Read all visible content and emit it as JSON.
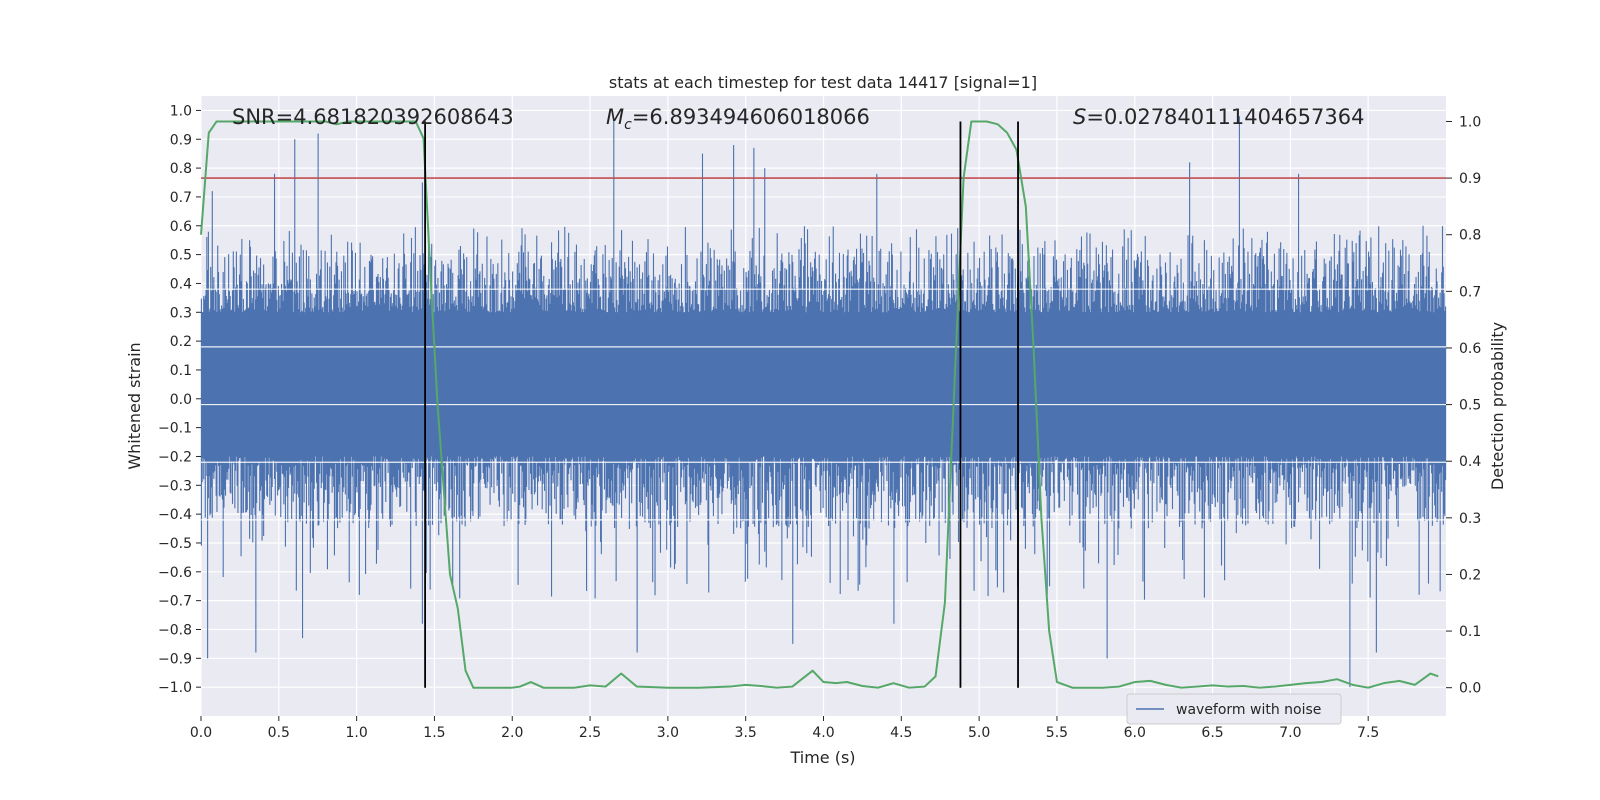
{
  "chart_data": {
    "type": "line",
    "title": "stats at each timestep for test data 14417 [signal=1]",
    "xlabel": "Time (s)",
    "ylabel": "Whitened strain",
    "y2label": "Detection probability",
    "xlim": [
      0.0,
      8.0
    ],
    "ylim": [
      -1.1,
      1.05
    ],
    "y2lim": [
      -0.05,
      1.045
    ],
    "xticks": [
      0.0,
      0.5,
      1.0,
      1.5,
      2.0,
      2.5,
      3.0,
      3.5,
      4.0,
      4.5,
      5.0,
      5.5,
      6.0,
      6.5,
      7.0,
      7.5
    ],
    "yticks": [
      -1.0,
      -0.9,
      -0.8,
      -0.7,
      -0.6,
      -0.5,
      -0.4,
      -0.3,
      -0.2,
      -0.1,
      0.0,
      0.1,
      0.2,
      0.3,
      0.4,
      0.5,
      0.6,
      0.7,
      0.8,
      0.9,
      1.0
    ],
    "y2ticks": [
      0.0,
      0.1,
      0.2,
      0.3,
      0.4,
      0.5,
      0.6,
      0.7,
      0.8,
      0.9,
      1.0
    ],
    "annotations": {
      "snr": "SNR=4.681820392608643",
      "mc_symbol": "M",
      "mc_sub": "c",
      "mc_value": "=6.893494606018066",
      "s_symbol": "S",
      "s_value": "=0.027840111404657364"
    },
    "legend": {
      "label": "waveform with noise",
      "location": "lower-right"
    },
    "threshold": {
      "axis": "y2",
      "value": 0.9,
      "color": "#c44e52"
    },
    "vlines": [
      1.44,
      4.88,
      5.25
    ],
    "waveform": {
      "name": "waveform with noise",
      "color": "#4c72b0",
      "t_start": 0.0,
      "t_end": 8.0,
      "samples": 1600,
      "dense_band": [
        -0.2,
        0.3
      ],
      "typical_max": 0.52,
      "typical_min": -0.45,
      "peaks": [
        [
          0.07,
          0.72
        ],
        [
          0.47,
          0.78
        ],
        [
          0.6,
          0.9
        ],
        [
          0.75,
          0.92
        ],
        [
          1.42,
          0.75
        ],
        [
          2.65,
          0.97
        ],
        [
          3.22,
          0.85
        ],
        [
          3.42,
          0.88
        ],
        [
          3.55,
          0.87
        ],
        [
          3.62,
          0.8
        ],
        [
          4.34,
          0.78
        ],
        [
          6.35,
          0.82
        ],
        [
          6.67,
          0.98
        ],
        [
          7.05,
          0.78
        ],
        [
          7.85,
          0.6
        ]
      ],
      "troughs": [
        [
          0.04,
          -0.9
        ],
        [
          0.35,
          -0.88
        ],
        [
          0.65,
          -0.83
        ],
        [
          1.42,
          -0.78
        ],
        [
          2.8,
          -0.88
        ],
        [
          3.8,
          -0.85
        ],
        [
          4.45,
          -0.78
        ],
        [
          5.45,
          -0.65
        ],
        [
          5.82,
          -0.9
        ],
        [
          7.38,
          -1.0
        ],
        [
          7.55,
          -0.88
        ]
      ]
    },
    "detection_probability": {
      "name": "detection probability",
      "color": "#55a868",
      "axis": "y2",
      "t": [
        0.0,
        0.05,
        0.1,
        0.2,
        0.4,
        0.6,
        0.8,
        0.87,
        0.95,
        1.05,
        1.2,
        1.3,
        1.38,
        1.43,
        1.48,
        1.52,
        1.56,
        1.6,
        1.65,
        1.7,
        1.75,
        1.8,
        1.9,
        2.0,
        2.05,
        2.12,
        2.2,
        2.3,
        2.4,
        2.5,
        2.6,
        2.7,
        2.8,
        3.0,
        3.2,
        3.4,
        3.5,
        3.6,
        3.7,
        3.8,
        3.86,
        3.93,
        4.0,
        4.08,
        4.15,
        4.25,
        4.35,
        4.45,
        4.55,
        4.65,
        4.72,
        4.78,
        4.82,
        4.86,
        4.9,
        4.95,
        5.0,
        5.05,
        5.12,
        5.18,
        5.24,
        5.3,
        5.35,
        5.4,
        5.45,
        5.5,
        5.6,
        5.7,
        5.8,
        5.9,
        6.0,
        6.1,
        6.2,
        6.3,
        6.4,
        6.5,
        6.6,
        6.7,
        6.8,
        6.9,
        7.0,
        7.1,
        7.2,
        7.3,
        7.4,
        7.5,
        7.6,
        7.7,
        7.8,
        7.9,
        7.95
      ],
      "p": [
        0.8,
        0.98,
        1.0,
        1.0,
        1.0,
        1.0,
        1.0,
        0.995,
        1.0,
        1.0,
        1.0,
        1.0,
        1.0,
        0.97,
        0.7,
        0.5,
        0.35,
        0.2,
        0.14,
        0.03,
        0.0,
        0.0,
        0.0,
        0.0,
        0.002,
        0.01,
        0.0,
        0.0,
        0.0,
        0.004,
        0.002,
        0.025,
        0.002,
        0.0,
        0.0,
        0.002,
        0.005,
        0.003,
        0.0,
        0.002,
        0.015,
        0.03,
        0.01,
        0.008,
        0.01,
        0.003,
        0.0,
        0.008,
        0.0,
        0.002,
        0.02,
        0.15,
        0.4,
        0.65,
        0.9,
        1.0,
        1.0,
        1.0,
        0.995,
        0.98,
        0.95,
        0.85,
        0.6,
        0.3,
        0.1,
        0.01,
        0.0,
        0.0,
        0.0,
        0.002,
        0.01,
        0.012,
        0.005,
        0.0,
        0.002,
        0.004,
        0.002,
        0.003,
        0.0,
        0.002,
        0.005,
        0.008,
        0.01,
        0.015,
        0.005,
        0.0,
        0.008,
        0.012,
        0.005,
        0.025,
        0.02
      ]
    }
  }
}
